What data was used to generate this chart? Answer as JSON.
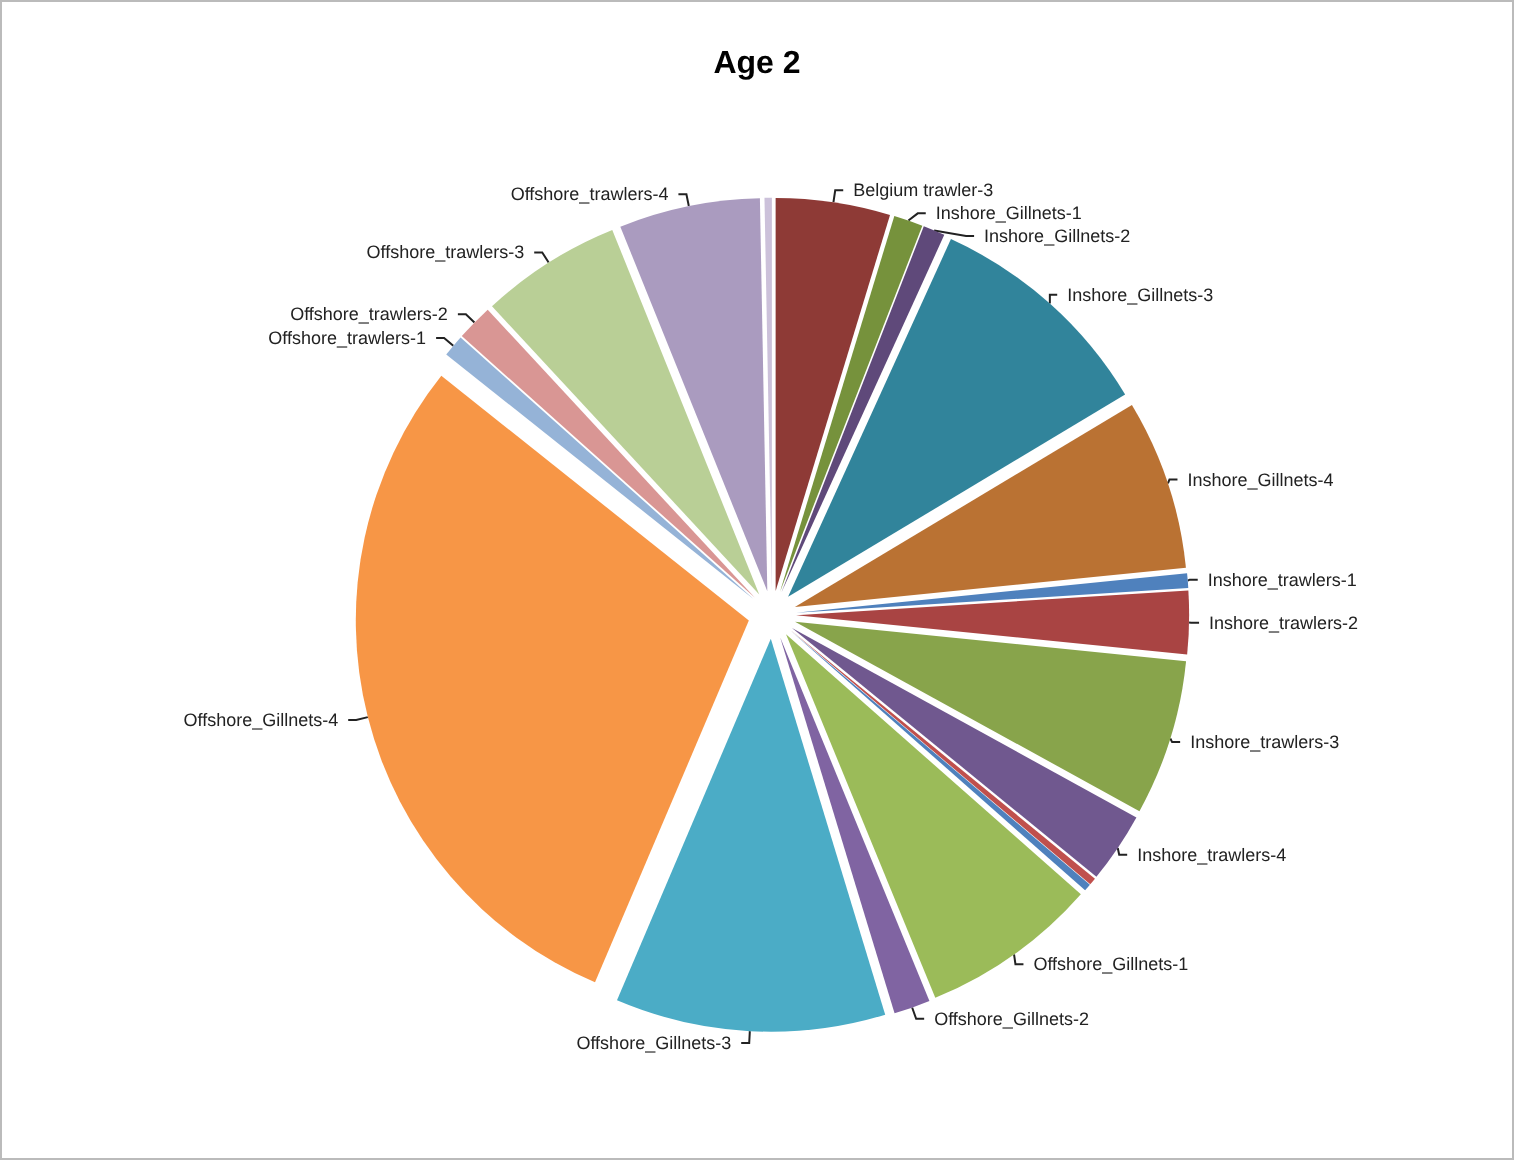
{
  "chart_data": {
    "type": "pie",
    "title": "Age 2",
    "categories": [
      "Belgium trawler-3",
      "Inshore_Gillnets-1",
      "Inshore_Gillnets-2",
      "Inshore_Gillnets-3",
      "Inshore_Gillnets-4",
      "Inshore_trawlers-1",
      "Inshore_trawlers-2",
      "Inshore_trawlers-3",
      "Inshore_trawlers-4",
      null,
      null,
      "Offshore_Gillnets-1",
      "Offshore_Gillnets-2",
      "Offshore_Gillnets-3",
      "Offshore_Gillnets-4",
      "Offshore_trawlers-1",
      "Offshore_trawlers-2",
      "Offshore_trawlers-3",
      "Offshore_trawlers-4",
      null
    ],
    "values": [
      4.7,
      1.2,
      0.9,
      9.6,
      7.0,
      0.6,
      2.6,
      6.4,
      2.9,
      0.3,
      0.3,
      7.3,
      1.5,
      11.1,
      29.3,
      0.9,
      1.5,
      5.8,
      5.8,
      0.3
    ],
    "colors": [
      "#8e3a36",
      "#76923c",
      "#5f497a",
      "#31849b",
      "#ba7233",
      "#4f81bd",
      "#a94443",
      "#88a44b",
      "#70588f",
      "#c0504d",
      "#4f81bd",
      "#9bbb59",
      "#8064a2",
      "#4bacc6",
      "#f79646",
      "#95b3d7",
      "#d99694",
      "#b9cf96",
      "#aa9bbf",
      "#ccc1da"
    ]
  }
}
